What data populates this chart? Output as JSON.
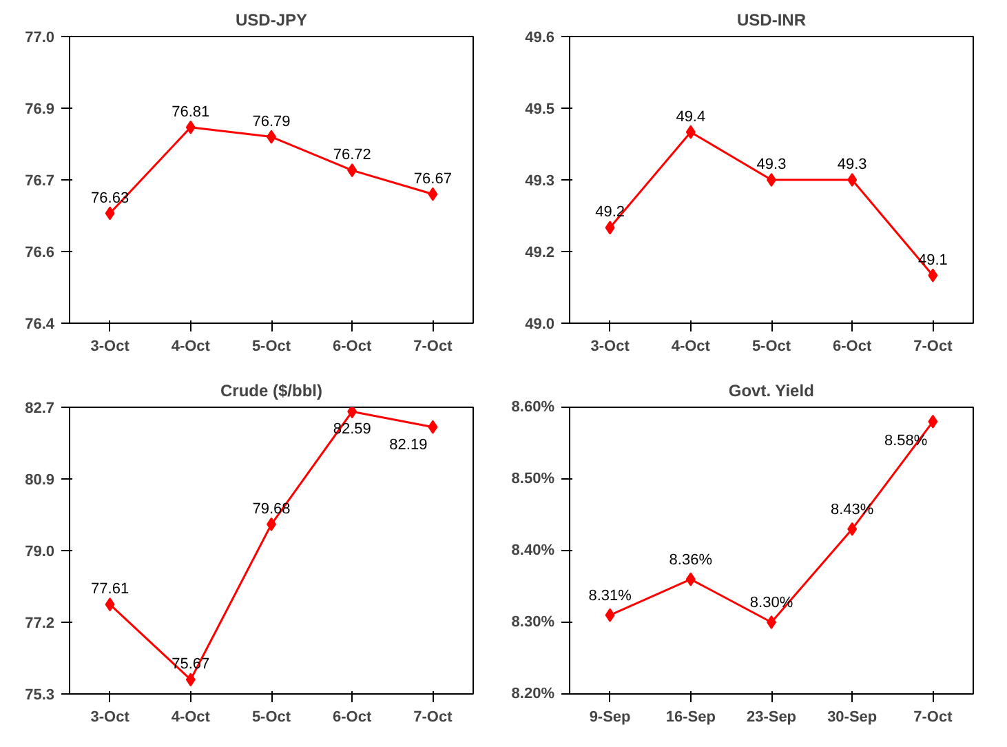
{
  "chart_data": [
    {
      "type": "line",
      "title": "USD-JPY",
      "categories": [
        "3-Oct",
        "4-Oct",
        "5-Oct",
        "6-Oct",
        "7-Oct"
      ],
      "series": [
        {
          "color": "#ff0000",
          "values": [
            76.63,
            76.81,
            76.79,
            76.72,
            76.67
          ]
        }
      ],
      "ylim": [
        76.4,
        77.0
      ],
      "yticks": [
        {
          "value": 76.4,
          "label": "76.4"
        },
        {
          "value": 76.55,
          "label": "76.6"
        },
        {
          "value": 76.7,
          "label": "76.7"
        },
        {
          "value": 76.85,
          "label": "76.9"
        },
        {
          "value": 77.0,
          "label": "77.0"
        }
      ],
      "marker": "diamond",
      "data_labels": true,
      "grid": false
    },
    {
      "type": "line",
      "title": "USD-INR",
      "categories": [
        "3-Oct",
        "4-Oct",
        "5-Oct",
        "6-Oct",
        "7-Oct"
      ],
      "series": [
        {
          "color": "#ff0000",
          "values": [
            49.2,
            49.4,
            49.3,
            49.3,
            49.1
          ]
        }
      ],
      "ylim": [
        49.0,
        49.6
      ],
      "yticks": [
        {
          "value": 49.0,
          "label": "49.0"
        },
        {
          "value": 49.15,
          "label": "49.2"
        },
        {
          "value": 49.3,
          "label": "49.3"
        },
        {
          "value": 49.45,
          "label": "49.5"
        },
        {
          "value": 49.6,
          "label": "49.6"
        }
      ],
      "marker": "diamond",
      "data_labels": true,
      "grid": false
    },
    {
      "type": "line",
      "title": "Crude ($/bbl)",
      "categories": [
        "3-Oct",
        "4-Oct",
        "5-Oct",
        "6-Oct",
        "7-Oct"
      ],
      "series": [
        {
          "color": "#ff0000",
          "values": [
            77.61,
            75.67,
            79.68,
            82.59,
            82.19
          ]
        }
      ],
      "ylim": [
        75.3,
        82.7
      ],
      "yticks": [
        {
          "value": 75.3,
          "label": "75.3"
        },
        {
          "value": 77.15,
          "label": "77.2"
        },
        {
          "value": 79.0,
          "label": "79.0"
        },
        {
          "value": 80.85,
          "label": "80.9"
        },
        {
          "value": 82.7,
          "label": "82.7"
        }
      ],
      "marker": "diamond",
      "data_labels": true,
      "grid": false
    },
    {
      "type": "line",
      "title": "Govt. Yield",
      "categories": [
        "9-Sep",
        "16-Sep",
        "23-Sep",
        "30-Sep",
        "7-Oct"
      ],
      "series": [
        {
          "color": "#ff0000",
          "values": [
            8.31,
            8.36,
            8.3,
            8.43,
            8.58
          ],
          "value_labels": [
            "8.31%",
            "8.36%",
            "8.30%",
            "8.43%",
            "8.58%"
          ]
        }
      ],
      "ylim": [
        8.2,
        8.6
      ],
      "yticks": [
        {
          "value": 8.2,
          "label": "8.20%"
        },
        {
          "value": 8.3,
          "label": "8.30%"
        },
        {
          "value": 8.4,
          "label": "8.40%"
        },
        {
          "value": 8.5,
          "label": "8.50%"
        },
        {
          "value": 8.6,
          "label": "8.60%"
        }
      ],
      "marker": "diamond",
      "grid": false
    }
  ]
}
